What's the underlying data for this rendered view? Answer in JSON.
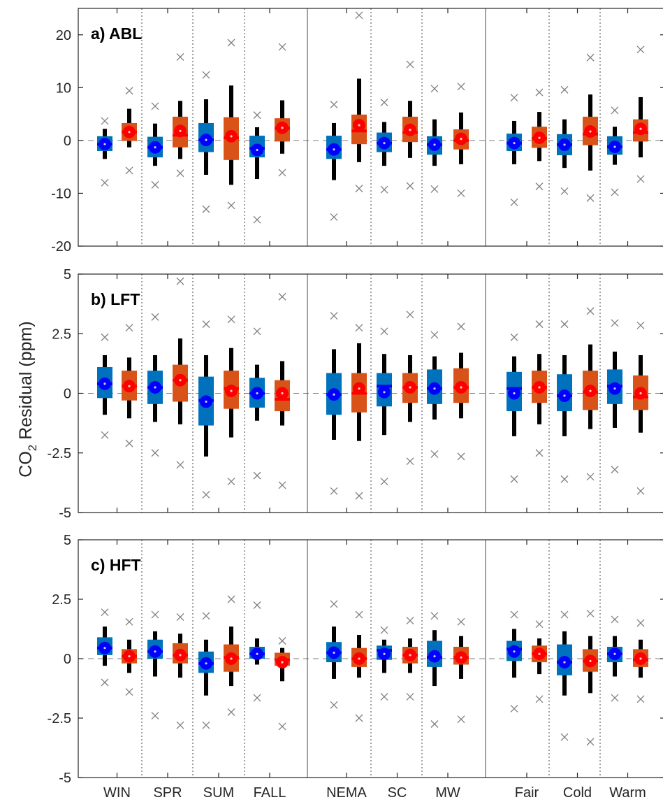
{
  "chart_data": {
    "type": "box",
    "ylabel": {
      "main": "CO",
      "sub": "2",
      "rest": " Residual (ppm)"
    },
    "categories": [
      "WIN",
      "SPR",
      "SUM",
      "FALL",
      "NEMA",
      "SC",
      "MW",
      "Fair",
      "Cold",
      "Warm"
    ],
    "colors": {
      "series1": "#0072bd",
      "series2": "#d95319",
      "mean1": "#0000ff",
      "mean2": "#ff0000",
      "outlier": "#808080"
    },
    "panels": [
      {
        "label": "a) ABL",
        "ylim": [
          -20,
          25
        ],
        "yticks": [
          -20,
          -10,
          0,
          10,
          20
        ],
        "boxes": [
          [
            {
              "min": -3.5,
              "q1": -2,
              "median": -0.7,
              "q3": 0.8,
              "max": 2.2,
              "mean": -0.7,
              "out_lo": -8,
              "out_hi": 3.7
            },
            {
              "min": -4.8,
              "q1": -3.2,
              "median": -1.3,
              "q3": 0.7,
              "max": 3.2,
              "mean": -1.3,
              "out_lo": -8.4,
              "out_hi": 6.5
            },
            {
              "min": -6.5,
              "q1": -2.2,
              "median": 0.1,
              "q3": 3.3,
              "max": 7.8,
              "mean": 0.1,
              "out_lo": -13,
              "out_hi": 12.4
            },
            {
              "min": -7.3,
              "q1": -3.2,
              "median": -1.5,
              "q3": 0.9,
              "max": 2.5,
              "mean": -1.8,
              "out_lo": -15,
              "out_hi": 4.8
            },
            {
              "min": -7.5,
              "q1": -3.5,
              "median": -1.7,
              "q3": 0.9,
              "max": 3.3,
              "mean": -1.7,
              "out_lo": -14.5,
              "out_hi": 6.8
            },
            {
              "min": -4.8,
              "q1": -2.2,
              "median": -0.5,
              "q3": 1.5,
              "max": 3.5,
              "mean": -0.5,
              "out_lo": -9.3,
              "out_hi": 7.2
            },
            {
              "min": -4.8,
              "q1": -2.7,
              "median": -0.8,
              "q3": 0.8,
              "max": 4,
              "mean": -0.8,
              "out_lo": -9.2,
              "out_hi": 9.8
            },
            {
              "min": -4.5,
              "q1": -2,
              "median": -0.5,
              "q3": 1.3,
              "max": 3.7,
              "mean": -0.5,
              "out_lo": -11.7,
              "out_hi": 8.1
            },
            {
              "min": -5.2,
              "q1": -2.8,
              "median": -0.8,
              "q3": 1.2,
              "max": 4,
              "mean": -0.8,
              "out_lo": -9.6,
              "out_hi": 9.6
            },
            {
              "min": -4.6,
              "q1": -2.7,
              "median": -1.2,
              "q3": 0.8,
              "max": 2.6,
              "mean": -1.2,
              "out_lo": -9.8,
              "out_hi": 5.7
            }
          ],
          [
            {
              "min": -1.3,
              "q1": -0.1,
              "median": 1.6,
              "q3": 3.3,
              "max": 6,
              "mean": 1.6,
              "out_lo": -5.7,
              "out_hi": 9.4
            },
            {
              "min": -3.5,
              "q1": -1.3,
              "median": 1.0,
              "q3": 4.5,
              "max": 7.5,
              "mean": 1.8,
              "out_lo": -6.2,
              "out_hi": 15.8
            },
            {
              "min": -8.4,
              "q1": -3.7,
              "median": 0.5,
              "q3": 4.4,
              "max": 10.4,
              "mean": 0.8,
              "out_lo": -12.3,
              "out_hi": 18.5
            },
            {
              "min": -2.5,
              "q1": -0.2,
              "median": 2.3,
              "q3": 4.2,
              "max": 7.6,
              "mean": 2.4,
              "out_lo": -6.1,
              "out_hi": 17.7
            },
            {
              "min": -4.1,
              "q1": -0.7,
              "median": 1.8,
              "q3": 4.9,
              "max": 11.7,
              "mean": 2.9,
              "out_lo": -9.1,
              "out_hi": 23.7
            },
            {
              "min": -3.3,
              "q1": -0.3,
              "median": 1.5,
              "q3": 4.5,
              "max": 7.5,
              "mean": 2,
              "out_lo": -8.6,
              "out_hi": 14.4
            },
            {
              "min": -4.5,
              "q1": -1.7,
              "median": 0,
              "q3": 2.1,
              "max": 5.3,
              "mean": 0.3,
              "out_lo": -10,
              "out_hi": 10.2
            },
            {
              "min": -3.9,
              "q1": -1.4,
              "median": 0.4,
              "q3": 2.6,
              "max": 5.4,
              "mean": 0.5,
              "out_lo": -8.7,
              "out_hi": 9.1
            },
            {
              "min": -5.7,
              "q1": -0.9,
              "median": 1.2,
              "q3": 4.5,
              "max": 8.7,
              "mean": 1.7,
              "out_lo": -10.9,
              "out_hi": 15.7
            },
            {
              "min": -3.2,
              "q1": -0.2,
              "median": 1.5,
              "q3": 4,
              "max": 8.2,
              "mean": 2.2,
              "out_lo": -7.3,
              "out_hi": 17.2
            }
          ]
        ]
      },
      {
        "label": "b) LFT",
        "ylim": [
          -5,
          5
        ],
        "yticks": [
          -5,
          -2.5,
          0,
          2.5,
          5
        ],
        "boxes": [
          [
            {
              "min": -0.9,
              "q1": -0.2,
              "median": 0.4,
              "q3": 1.1,
              "max": 1.6,
              "mean": 0.4,
              "out_lo": -1.75,
              "out_hi": 2.35
            },
            {
              "min": -1.2,
              "q1": -0.45,
              "median": 0.25,
              "q3": 0.95,
              "max": 1.6,
              "mean": 0.25,
              "out_lo": -2.5,
              "out_hi": 3.2
            },
            {
              "min": -2.65,
              "q1": -1.35,
              "median": -0.3,
              "q3": 0.7,
              "max": 1.6,
              "mean": -0.35,
              "out_lo": -4.25,
              "out_hi": 2.9
            },
            {
              "min": -1.15,
              "q1": -0.6,
              "median": 0,
              "q3": 0.65,
              "max": 1.2,
              "mean": 0,
              "out_lo": -3.45,
              "out_hi": 2.6
            },
            {
              "min": -1.95,
              "q1": -0.9,
              "median": -0.05,
              "q3": 0.85,
              "max": 1.85,
              "mean": -0.05,
              "out_lo": -4.1,
              "out_hi": 3.25
            },
            {
              "min": -1.75,
              "q1": -0.55,
              "median": 0.3,
              "q3": 0.85,
              "max": 1.65,
              "mean": 0.05,
              "out_lo": -3.7,
              "out_hi": 2.6
            },
            {
              "min": -1.1,
              "q1": -0.45,
              "median": 0.2,
              "q3": 1,
              "max": 1.55,
              "mean": 0.2,
              "out_lo": -2.55,
              "out_hi": 2.45
            },
            {
              "min": -1.8,
              "q1": -0.75,
              "median": 0.2,
              "q3": 0.9,
              "max": 1.55,
              "mean": 0,
              "out_lo": -3.6,
              "out_hi": 2.35
            },
            {
              "min": -1.8,
              "q1": -0.75,
              "median": -0.1,
              "q3": 0.8,
              "max": 1.6,
              "mean": -0.1,
              "out_lo": -3.6,
              "out_hi": 2.9
            },
            {
              "min": -1.45,
              "q1": -0.45,
              "median": 0.3,
              "q3": 1,
              "max": 1.75,
              "mean": 0.2,
              "out_lo": -3.2,
              "out_hi": 2.95
            }
          ],
          [
            {
              "min": -1.05,
              "q1": -0.3,
              "median": 0.3,
              "q3": 0.95,
              "max": 1.5,
              "mean": 0.3,
              "out_lo": -2.1,
              "out_hi": 2.75
            },
            {
              "min": -1.3,
              "q1": -0.35,
              "median": 0.55,
              "q3": 1.2,
              "max": 2.3,
              "mean": 0.55,
              "out_lo": -3,
              "out_hi": 4.7
            },
            {
              "min": -1.85,
              "q1": -0.65,
              "median": 0.2,
              "q3": 0.95,
              "max": 1.9,
              "mean": 0.1,
              "out_lo": -3.7,
              "out_hi": 3.1
            },
            {
              "min": -1.35,
              "q1": -0.75,
              "median": -0.25,
              "q3": 0.55,
              "max": 1.35,
              "mean": 0,
              "out_lo": -3.85,
              "out_hi": 4.05
            },
            {
              "min": -2,
              "q1": -0.8,
              "median": 0,
              "q3": 0.85,
              "max": 2.1,
              "mean": 0.2,
              "out_lo": -4.3,
              "out_hi": 2.75
            },
            {
              "min": -1.2,
              "q1": -0.4,
              "median": 0.25,
              "q3": 0.85,
              "max": 1.6,
              "mean": 0.25,
              "out_lo": -2.85,
              "out_hi": 3.3
            },
            {
              "min": -1.05,
              "q1": -0.4,
              "median": 0.25,
              "q3": 1.05,
              "max": 1.7,
              "mean": 0.25,
              "out_lo": -2.65,
              "out_hi": 2.8
            },
            {
              "min": -1.3,
              "q1": -0.4,
              "median": 0.25,
              "q3": 0.95,
              "max": 1.65,
              "mean": 0.25,
              "out_lo": -2.5,
              "out_hi": 2.9
            },
            {
              "min": -1.5,
              "q1": -0.7,
              "median": 0.05,
              "q3": 0.95,
              "max": 2.05,
              "mean": 0.1,
              "out_lo": -3.5,
              "out_hi": 3.45
            },
            {
              "min": -1.65,
              "q1": -0.7,
              "median": -0.15,
              "q3": 0.75,
              "max": 1.6,
              "mean": 0,
              "out_lo": -4.1,
              "out_hi": 2.85
            }
          ]
        ]
      },
      {
        "label": "c) HFT",
        "ylim": [
          -5,
          5
        ],
        "yticks": [
          -5,
          -2.5,
          0,
          2.5,
          5
        ],
        "boxes": [
          [
            {
              "min": -0.3,
              "q1": 0.15,
              "median": 0.45,
              "q3": 0.9,
              "max": 1.35,
              "mean": 0.45,
              "out_lo": -1,
              "out_hi": 1.95
            },
            {
              "min": -0.75,
              "q1": 0,
              "median": 0.3,
              "q3": 0.8,
              "max": 1.15,
              "mean": 0.3,
              "out_lo": -2.4,
              "out_hi": 1.85
            },
            {
              "min": -1.55,
              "q1": -0.6,
              "median": -0.2,
              "q3": 0.3,
              "max": 0.8,
              "mean": -0.2,
              "out_lo": -2.8,
              "out_hi": 1.8
            },
            {
              "min": -0.25,
              "q1": 0,
              "median": 0.2,
              "q3": 0.5,
              "max": 0.85,
              "mean": 0.2,
              "out_lo": -1.65,
              "out_hi": 2.25
            },
            {
              "min": -0.85,
              "q1": -0.15,
              "median": 0.25,
              "q3": 0.7,
              "max": 1.35,
              "mean": 0.25,
              "out_lo": -1.95,
              "out_hi": 2.3
            },
            {
              "min": -0.6,
              "q1": -0.05,
              "median": 0.35,
              "q3": 0.55,
              "max": 0.8,
              "mean": 0.2,
              "out_lo": -1.6,
              "out_hi": 1.2
            },
            {
              "min": -1.15,
              "q1": -0.35,
              "median": 0.05,
              "q3": 0.75,
              "max": 1.2,
              "mean": 0.1,
              "out_lo": -2.75,
              "out_hi": 1.8
            },
            {
              "min": -0.8,
              "q1": -0.1,
              "median": 0.4,
              "q3": 0.75,
              "max": 1.25,
              "mean": 0.3,
              "out_lo": -2.1,
              "out_hi": 1.85
            },
            {
              "min": -1.55,
              "q1": -0.7,
              "median": -0.15,
              "q3": 0.6,
              "max": 1.15,
              "mean": -0.15,
              "out_lo": -3.3,
              "out_hi": 1.85
            },
            {
              "min": -0.75,
              "q1": -0.15,
              "median": 0.2,
              "q3": 0.5,
              "max": 0.95,
              "mean": 0.2,
              "out_lo": -1.65,
              "out_hi": 1.65
            }
          ],
          [
            {
              "min": -0.6,
              "q1": -0.2,
              "median": 0.1,
              "q3": 0.4,
              "max": 0.8,
              "mean": 0.1,
              "out_lo": -1.4,
              "out_hi": 1.55
            },
            {
              "min": -0.8,
              "q1": -0.2,
              "median": 0.15,
              "q3": 0.65,
              "max": 1.05,
              "mean": 0.15,
              "out_lo": -2.8,
              "out_hi": 1.75
            },
            {
              "min": -1.15,
              "q1": -0.55,
              "median": 0.05,
              "q3": 0.6,
              "max": 1.35,
              "mean": 0,
              "out_lo": -2.25,
              "out_hi": 2.5
            },
            {
              "min": -0.95,
              "q1": -0.3,
              "median": -0.05,
              "q3": 0.25,
              "max": 0.45,
              "mean": -0.15,
              "out_lo": -2.85,
              "out_hi": 0.75
            },
            {
              "min": -0.8,
              "q1": -0.35,
              "median": 0,
              "q3": 0.45,
              "max": 1,
              "mean": 0,
              "out_lo": -2.5,
              "out_hi": 1.85
            },
            {
              "min": -0.6,
              "q1": -0.2,
              "median": 0.15,
              "q3": 0.5,
              "max": 0.85,
              "mean": 0.15,
              "out_lo": -1.6,
              "out_hi": 1.6
            },
            {
              "min": -0.85,
              "q1": -0.25,
              "median": 0.05,
              "q3": 0.5,
              "max": 0.95,
              "mean": 0.05,
              "out_lo": -2.55,
              "out_hi": 1.55
            },
            {
              "min": -0.65,
              "q1": -0.15,
              "median": 0.2,
              "q3": 0.55,
              "max": 0.85,
              "mean": 0.2,
              "out_lo": -1.7,
              "out_hi": 1.45
            },
            {
              "min": -1.45,
              "q1": -0.55,
              "median": -0.1,
              "q3": 0.4,
              "max": 0.95,
              "mean": -0.1,
              "out_lo": -3.5,
              "out_hi": 1.9
            },
            {
              "min": -0.8,
              "q1": -0.35,
              "median": -0.05,
              "q3": 0.4,
              "max": 0.8,
              "mean": 0,
              "out_lo": -1.7,
              "out_hi": 1.5
            }
          ]
        ]
      }
    ]
  }
}
